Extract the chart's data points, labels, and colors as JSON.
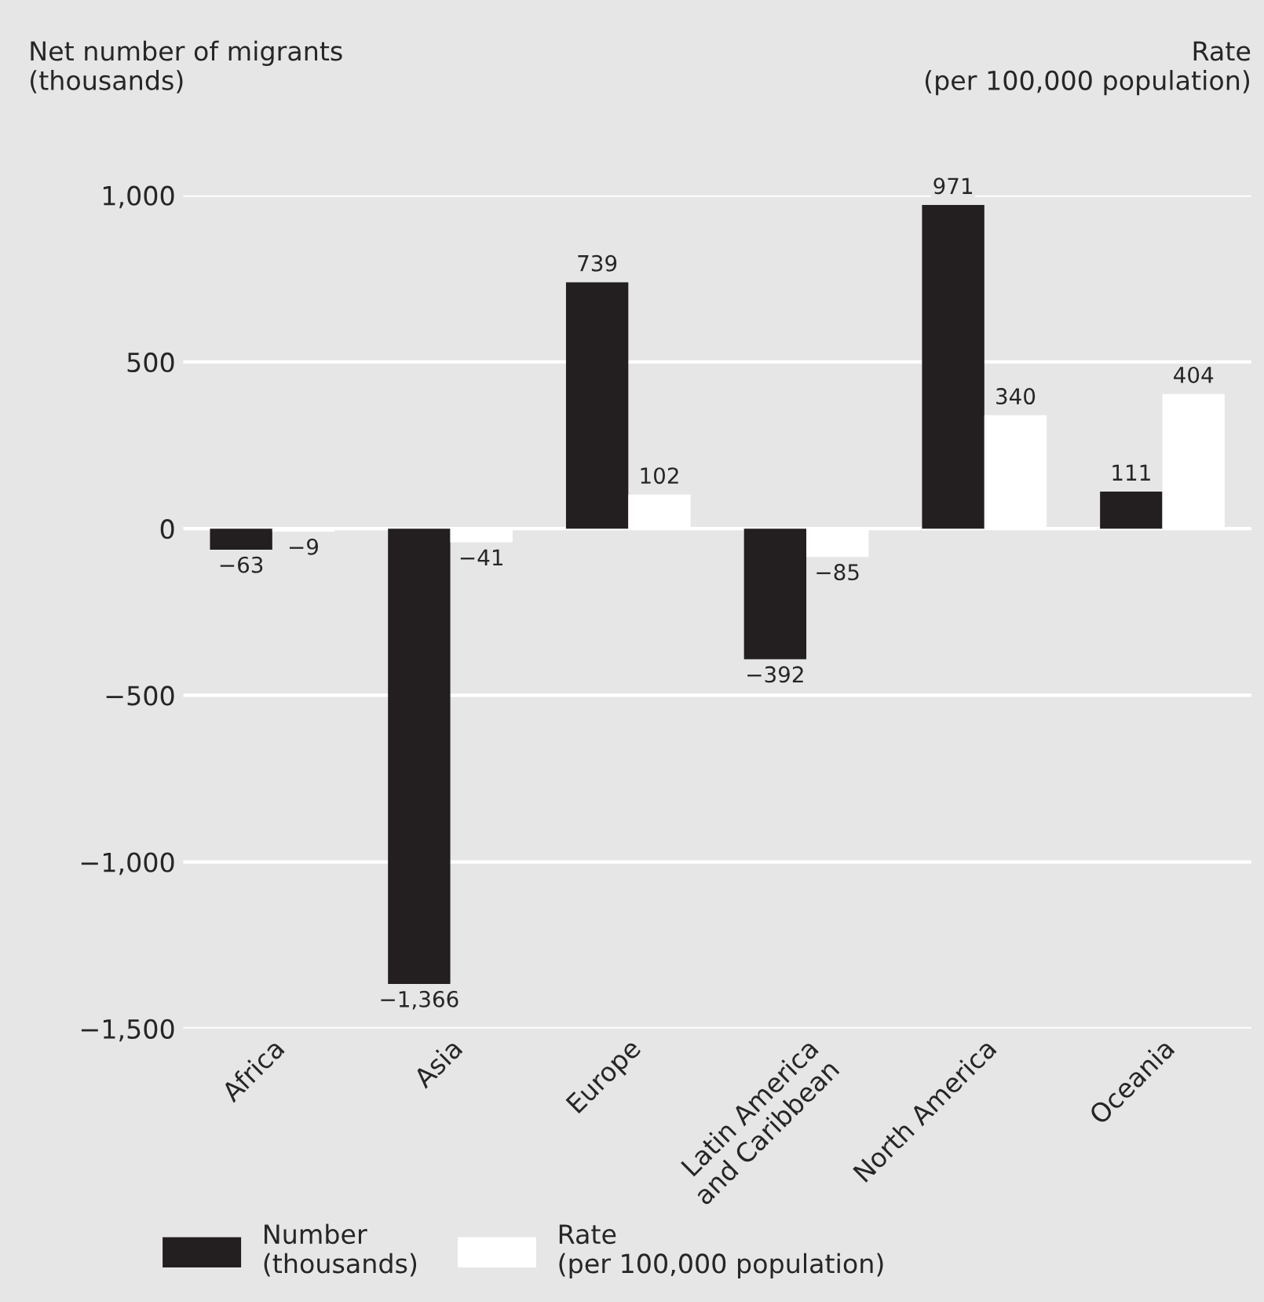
{
  "chart_data": {
    "type": "bar",
    "categories": [
      "Africa",
      "Asia",
      "Europe",
      "Latin America\nand Caribbean",
      "North America",
      "Oceania"
    ],
    "ylabel": "Net number of migrants\n(thousands)",
    "y2label": "Rate\n(per 100,000 population)",
    "series": [
      {
        "name": "Number\n(thousands)",
        "color": "#231f20",
        "values": [
          -63,
          -1366,
          739,
          -392,
          971,
          111
        ],
        "value_labels": [
          "−63",
          "−1,366",
          "739",
          "−392",
          "971",
          "111"
        ]
      },
      {
        "name": "Rate\n(per 100,000 population)",
        "color": "#ffffff",
        "values": [
          -9,
          -41,
          102,
          -85,
          340,
          404
        ],
        "value_labels": [
          "−9",
          "−41",
          "102",
          "−85",
          "340",
          "404"
        ]
      }
    ],
    "ylim": [
      -1500,
      1000
    ],
    "yticks": [
      {
        "value": -1500,
        "label": "−1,500"
      },
      {
        "value": -1000,
        "label": "−1,000"
      },
      {
        "value": -500,
        "label": "−500"
      },
      0,
      500,
      {
        "value": 1000,
        "label": "1,000"
      }
    ],
    "grid": "y",
    "legend": "bottom left"
  }
}
